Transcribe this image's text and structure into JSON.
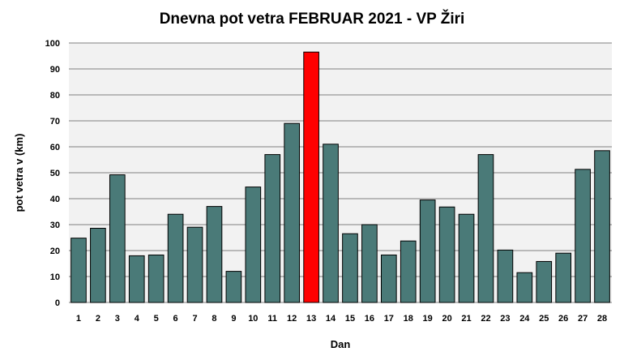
{
  "chart_data": {
    "type": "bar",
    "title": "Dnevna pot vetra FEBRUAR 2021 - VP Žiri",
    "xlabel": "Dan",
    "ylabel": "pot vetra  v (km)",
    "ylim": [
      0,
      100
    ],
    "yticks": [
      0,
      10,
      20,
      30,
      40,
      50,
      60,
      70,
      80,
      90,
      100
    ],
    "categories": [
      "1",
      "2",
      "3",
      "4",
      "5",
      "6",
      "7",
      "8",
      "9",
      "10",
      "11",
      "12",
      "13",
      "14",
      "15",
      "16",
      "17",
      "18",
      "19",
      "20",
      "21",
      "22",
      "23",
      "24",
      "25",
      "26",
      "27",
      "28"
    ],
    "values": [
      24.8,
      28.6,
      49.2,
      18,
      18.3,
      34,
      29,
      37,
      12,
      44.5,
      57,
      69,
      96.5,
      61,
      26.5,
      30,
      18.3,
      23.7,
      39.5,
      36.8,
      34,
      57,
      20.2,
      11.5,
      15.8,
      19,
      51.3,
      58.5
    ],
    "highlight_index": 12,
    "grid": true,
    "legend": "none",
    "colors": {
      "bar": "#4a7a78",
      "highlight": "#ff0000",
      "plot_background": "#f2f2f2",
      "grid": "#808080",
      "bar_outline": "#000000"
    }
  }
}
